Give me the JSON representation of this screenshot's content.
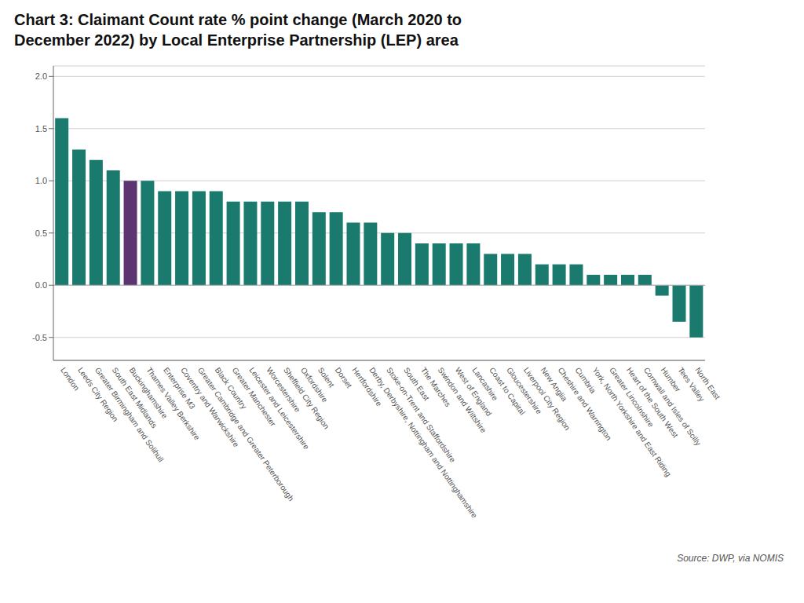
{
  "chart_data": {
    "type": "bar",
    "title": "Chart 3: Claimant Count rate % point change (March 2020 to\nDecember 2022) by Local Enterprise Partnership (LEP) area",
    "categories": [
      "London",
      "Leeds City Region",
      "Greater Birmingham and Solihull",
      "South East Midlands",
      "Buckinghamshire",
      "Thames Valley Berkshire",
      "Enterprise M3",
      "Coventry and Warwickshire",
      "Greater Cambridge and Greater Peterborough",
      "Black Country",
      "Greater Manchester",
      "Leicester and Leicestershire",
      "Worcestershire",
      "Sheffield City Region",
      "Oxfordshire",
      "Solent",
      "Dorset",
      "Hertfordshire",
      "Derby, Derbyshire, Nottingham and Nottinghamshire",
      "Stoke-on-Trent and Staffordshire",
      "South East",
      "The Marches",
      "Swindon and Wiltshire",
      "West of England",
      "Lancashire",
      "Coast to Capital",
      "Gloucestershire",
      "Liverpool City Region",
      "New Anglia",
      "Cheshire and Warrington",
      "Cumbria",
      "York, North Yorkshire and East Riding",
      "Greater Lincolnshire",
      "Heart of the South West",
      "Cornwall and Isles of Scilly",
      "Humber",
      "Tees Valley",
      "North East"
    ],
    "values": [
      1.6,
      1.3,
      1.2,
      1.1,
      1.0,
      1.0,
      0.9,
      0.9,
      0.9,
      0.9,
      0.8,
      0.8,
      0.8,
      0.8,
      0.8,
      0.7,
      0.7,
      0.6,
      0.6,
      0.5,
      0.5,
      0.4,
      0.4,
      0.4,
      0.4,
      0.3,
      0.3,
      0.3,
      0.2,
      0.2,
      0.2,
      0.1,
      0.1,
      0.1,
      0.1,
      -0.1,
      -0.35,
      -0.5
    ],
    "colors": [
      "#1a7a6e",
      "#1a7a6e",
      "#1a7a6e",
      "#1a7a6e",
      "#5c3472",
      "#1a7a6e",
      "#1a7a6e",
      "#1a7a6e",
      "#1a7a6e",
      "#1a7a6e",
      "#1a7a6e",
      "#1a7a6e",
      "#1a7a6e",
      "#1a7a6e",
      "#1a7a6e",
      "#1a7a6e",
      "#1a7a6e",
      "#1a7a6e",
      "#1a7a6e",
      "#1a7a6e",
      "#1a7a6e",
      "#1a7a6e",
      "#1a7a6e",
      "#1a7a6e",
      "#1a7a6e",
      "#1a7a6e",
      "#1a7a6e",
      "#1a7a6e",
      "#1a7a6e",
      "#1a7a6e",
      "#1a7a6e",
      "#1a7a6e",
      "#1a7a6e",
      "#1a7a6e",
      "#1a7a6e",
      "#1a7a6e",
      "#1a7a6e",
      "#1a7a6e"
    ],
    "ylim": [
      -0.72,
      2.1
    ],
    "yticks": [
      -0.5,
      {
        "value": 0,
        "label": "0.0"
      },
      0.5,
      {
        "value": 1,
        "label": "1.0"
      },
      1.5,
      {
        "value": 2,
        "label": "2.0"
      }
    ],
    "grid": true,
    "annotations": [
      "Source: DWP, via NOMIS"
    ]
  }
}
